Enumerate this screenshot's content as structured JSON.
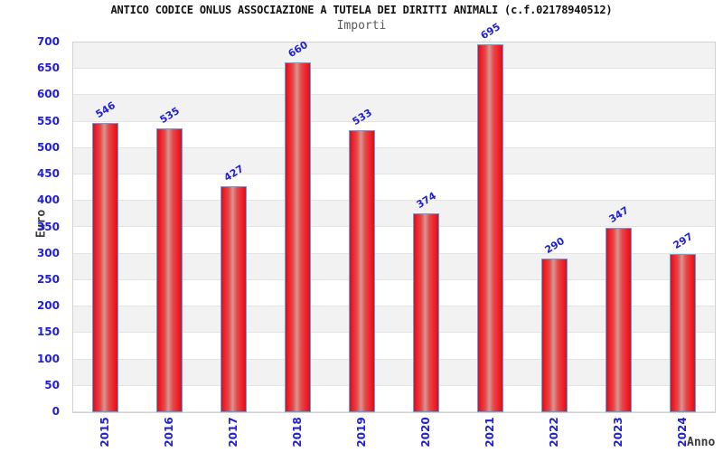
{
  "header": {
    "title": "ANTICO CODICE ONLUS ASSOCIAZIONE A TUTELA DEI DIRITTI ANIMALI (c.f.02178940512)"
  },
  "chart_data": {
    "type": "bar",
    "title": "Importi",
    "xlabel": "Anno",
    "ylabel": "Euro",
    "categories": [
      "2015",
      "2016",
      "2017",
      "2018",
      "2019",
      "2020",
      "2021",
      "2022",
      "2023",
      "2024"
    ],
    "values": [
      546,
      535,
      427,
      660,
      533,
      374,
      695,
      290,
      347,
      297
    ],
    "ylim": [
      0,
      700
    ],
    "ytick_step": 50,
    "yticks": [
      0,
      50,
      100,
      150,
      200,
      250,
      300,
      350,
      400,
      450,
      500,
      550,
      600,
      650,
      700
    ],
    "grid": "alternating horizontal bands with gridlines every 50",
    "legend": "none",
    "data_labels": "shown above each bar, rotated, blue"
  },
  "colors": {
    "bar_red": "#ee1c25",
    "bar_highlight": "#d69693",
    "bar_border_blue": "#56a7e5",
    "label_blue": "#2121d3",
    "band_gray": "#f2f2f2",
    "grid_line": "#e4e4e4",
    "plot_border": "#d2d2d2",
    "title_black": "#111111",
    "subtitle_gray": "#5a5a5a",
    "axis_title_dark": "#3a3a3a",
    "background": "#ffffff"
  }
}
